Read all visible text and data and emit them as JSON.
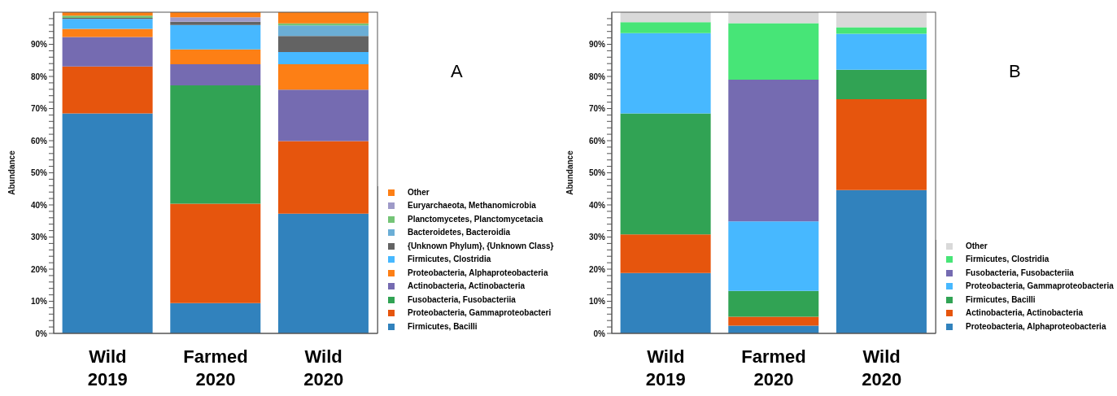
{
  "chart_data": [
    {
      "type": "bar",
      "stacked": true,
      "ylabel": "Abundance",
      "annotations": [
        "A"
      ],
      "legend": "bottom right",
      "categories": [
        "Wild 2019",
        "Farmed 2020",
        "Wild 2020"
      ],
      "ylim": [
        0,
        100
      ],
      "yticks": [
        {
          "value": 0,
          "label": "0%"
        },
        {
          "value": 2,
          "label": null
        },
        {
          "value": 4,
          "label": null
        },
        {
          "value": 6,
          "label": null
        },
        {
          "value": 8,
          "label": null
        },
        {
          "value": 10,
          "label": "10%"
        },
        {
          "value": 12,
          "label": null
        },
        {
          "value": 14,
          "label": null
        },
        {
          "value": 16,
          "label": null
        },
        {
          "value": 18,
          "label": null
        },
        {
          "value": 20,
          "label": "20%"
        },
        {
          "value": 22,
          "label": null
        },
        {
          "value": 24,
          "label": null
        },
        {
          "value": 26,
          "label": null
        },
        {
          "value": 28,
          "label": null
        },
        {
          "value": 30,
          "label": "30%"
        },
        {
          "value": 32,
          "label": null
        },
        {
          "value": 34,
          "label": null
        },
        {
          "value": 36,
          "label": null
        },
        {
          "value": 38,
          "label": null
        },
        {
          "value": 40,
          "label": "40%"
        },
        {
          "value": 42,
          "label": null
        },
        {
          "value": 44,
          "label": null
        },
        {
          "value": 46,
          "label": null
        },
        {
          "value": 48,
          "label": null
        },
        {
          "value": 50,
          "label": "50%"
        },
        {
          "value": 52,
          "label": null
        },
        {
          "value": 54,
          "label": null
        },
        {
          "value": 56,
          "label": null
        },
        {
          "value": 58,
          "label": null
        },
        {
          "value": 60,
          "label": "60%"
        },
        {
          "value": 62,
          "label": null
        },
        {
          "value": 64,
          "label": null
        },
        {
          "value": 66,
          "label": null
        },
        {
          "value": 68,
          "label": null
        },
        {
          "value": 70,
          "label": "70%"
        },
        {
          "value": 72,
          "label": null
        },
        {
          "value": 74,
          "label": null
        },
        {
          "value": 76,
          "label": null
        },
        {
          "value": 78,
          "label": null
        },
        {
          "value": 80,
          "label": "80%"
        },
        {
          "value": 82,
          "label": null
        },
        {
          "value": 84,
          "label": null
        },
        {
          "value": 86,
          "label": null
        },
        {
          "value": 88,
          "label": null
        },
        {
          "value": 90,
          "label": "90%"
        },
        {
          "value": 92,
          "label": null
        },
        {
          "value": 94,
          "label": null
        },
        {
          "value": 96,
          "label": null
        },
        {
          "value": 98,
          "label": null
        }
      ],
      "series": [
        {
          "name": "Firmicutes, Bacilli",
          "color": "#3182bd",
          "values": [
            68.5,
            9.4,
            37.3
          ]
        },
        {
          "name": "Proteobacteria, Gammaproteobacteri",
          "color": "#e6550d",
          "values": [
            14.6,
            31.0,
            22.6
          ]
        },
        {
          "name": "Fusobacteria, Fusobacteriia",
          "color": "#31a354",
          "values": [
            0,
            36.8,
            0
          ]
        },
        {
          "name": "Actinobacteria, Actinobacteria",
          "color": "#756bb1",
          "values": [
            9.2,
            6.6,
            16.0
          ]
        },
        {
          "name": "Proteobacteria, Alphaproteobacteria",
          "color": "#fd7f15",
          "values": [
            2.5,
            4.6,
            7.9
          ]
        },
        {
          "name": "Firmicutes, Clostridia",
          "color": "#47b8ff",
          "values": [
            3.1,
            7.6,
            3.8
          ]
        },
        {
          "name": "{Unknown Phylum}, {Unknown Class}",
          "color": "#636363",
          "values": [
            0.3,
            1.0,
            5.0
          ]
        },
        {
          "name": "Bacteroidetes, Bacteroidia",
          "color": "#6baed6",
          "values": [
            0,
            0,
            3.3
          ]
        },
        {
          "name": "Planctomycetes, Planctomycetacia",
          "color": "#74c476",
          "values": [
            0.7,
            0,
            0.6
          ]
        },
        {
          "name": "Euryarchaeota, Methanomicrobia",
          "color": "#9e9ac8",
          "values": [
            0,
            1.4,
            0
          ]
        },
        {
          "name": "Other",
          "color": "#fd7f15",
          "values": [
            1.1,
            1.6,
            3.5
          ]
        }
      ]
    },
    {
      "type": "bar",
      "stacked": true,
      "ylabel": "Abundance",
      "annotations": [
        "B"
      ],
      "legend": "bottom right",
      "categories": [
        "Wild 2019",
        "Farmed 2020",
        "Wild 2020"
      ],
      "ylim": [
        0,
        100
      ],
      "yticks": [
        {
          "value": 0,
          "label": "0%"
        },
        {
          "value": 2,
          "label": null
        },
        {
          "value": 4,
          "label": null
        },
        {
          "value": 6,
          "label": null
        },
        {
          "value": 8,
          "label": null
        },
        {
          "value": 10,
          "label": "10%"
        },
        {
          "value": 12,
          "label": null
        },
        {
          "value": 14,
          "label": null
        },
        {
          "value": 16,
          "label": null
        },
        {
          "value": 18,
          "label": null
        },
        {
          "value": 20,
          "label": "20%"
        },
        {
          "value": 22,
          "label": null
        },
        {
          "value": 24,
          "label": null
        },
        {
          "value": 26,
          "label": null
        },
        {
          "value": 28,
          "label": null
        },
        {
          "value": 30,
          "label": "30%"
        },
        {
          "value": 32,
          "label": null
        },
        {
          "value": 34,
          "label": null
        },
        {
          "value": 36,
          "label": null
        },
        {
          "value": 38,
          "label": null
        },
        {
          "value": 40,
          "label": "40%"
        },
        {
          "value": 42,
          "label": null
        },
        {
          "value": 44,
          "label": null
        },
        {
          "value": 46,
          "label": null
        },
        {
          "value": 48,
          "label": null
        },
        {
          "value": 50,
          "label": "50%"
        },
        {
          "value": 52,
          "label": null
        },
        {
          "value": 54,
          "label": null
        },
        {
          "value": 56,
          "label": null
        },
        {
          "value": 58,
          "label": null
        },
        {
          "value": 60,
          "label": "60%"
        },
        {
          "value": 62,
          "label": null
        },
        {
          "value": 64,
          "label": null
        },
        {
          "value": 66,
          "label": null
        },
        {
          "value": 68,
          "label": null
        },
        {
          "value": 70,
          "label": "70%"
        },
        {
          "value": 72,
          "label": null
        },
        {
          "value": 74,
          "label": null
        },
        {
          "value": 76,
          "label": null
        },
        {
          "value": 78,
          "label": null
        },
        {
          "value": 80,
          "label": "80%"
        },
        {
          "value": 82,
          "label": null
        },
        {
          "value": 84,
          "label": null
        },
        {
          "value": 86,
          "label": null
        },
        {
          "value": 88,
          "label": null
        },
        {
          "value": 90,
          "label": "90%"
        },
        {
          "value": 92,
          "label": null
        },
        {
          "value": 94,
          "label": null
        },
        {
          "value": 96,
          "label": null
        },
        {
          "value": 98,
          "label": null
        }
      ],
      "series": [
        {
          "name": "Proteobacteria, Alphaproteobacteria",
          "color": "#3182bd",
          "values": [
            18.8,
            2.4,
            44.6
          ]
        },
        {
          "name": "Actinobacteria, Actinobacteria",
          "color": "#e6550d",
          "values": [
            12.0,
            2.8,
            28.3
          ]
        },
        {
          "name": "Firmicutes, Bacilli",
          "color": "#31a354",
          "values": [
            37.7,
            8.0,
            9.2
          ]
        },
        {
          "name": "Proteobacteria, Gammaproteobacteria",
          "color": "#47b8ff",
          "values": [
            25.0,
            21.7,
            11.2
          ]
        },
        {
          "name": "Fusobacteria, Fusobacteriia",
          "color": "#756bb1",
          "values": [
            0,
            44.1,
            0
          ]
        },
        {
          "name": "Firmicutes, Clostridia",
          "color": "#47e577",
          "values": [
            3.4,
            17.6,
            2.0
          ]
        },
        {
          "name": "Other",
          "color": "#d9d9d9",
          "values": [
            3.1,
            3.4,
            4.7
          ]
        }
      ]
    }
  ]
}
